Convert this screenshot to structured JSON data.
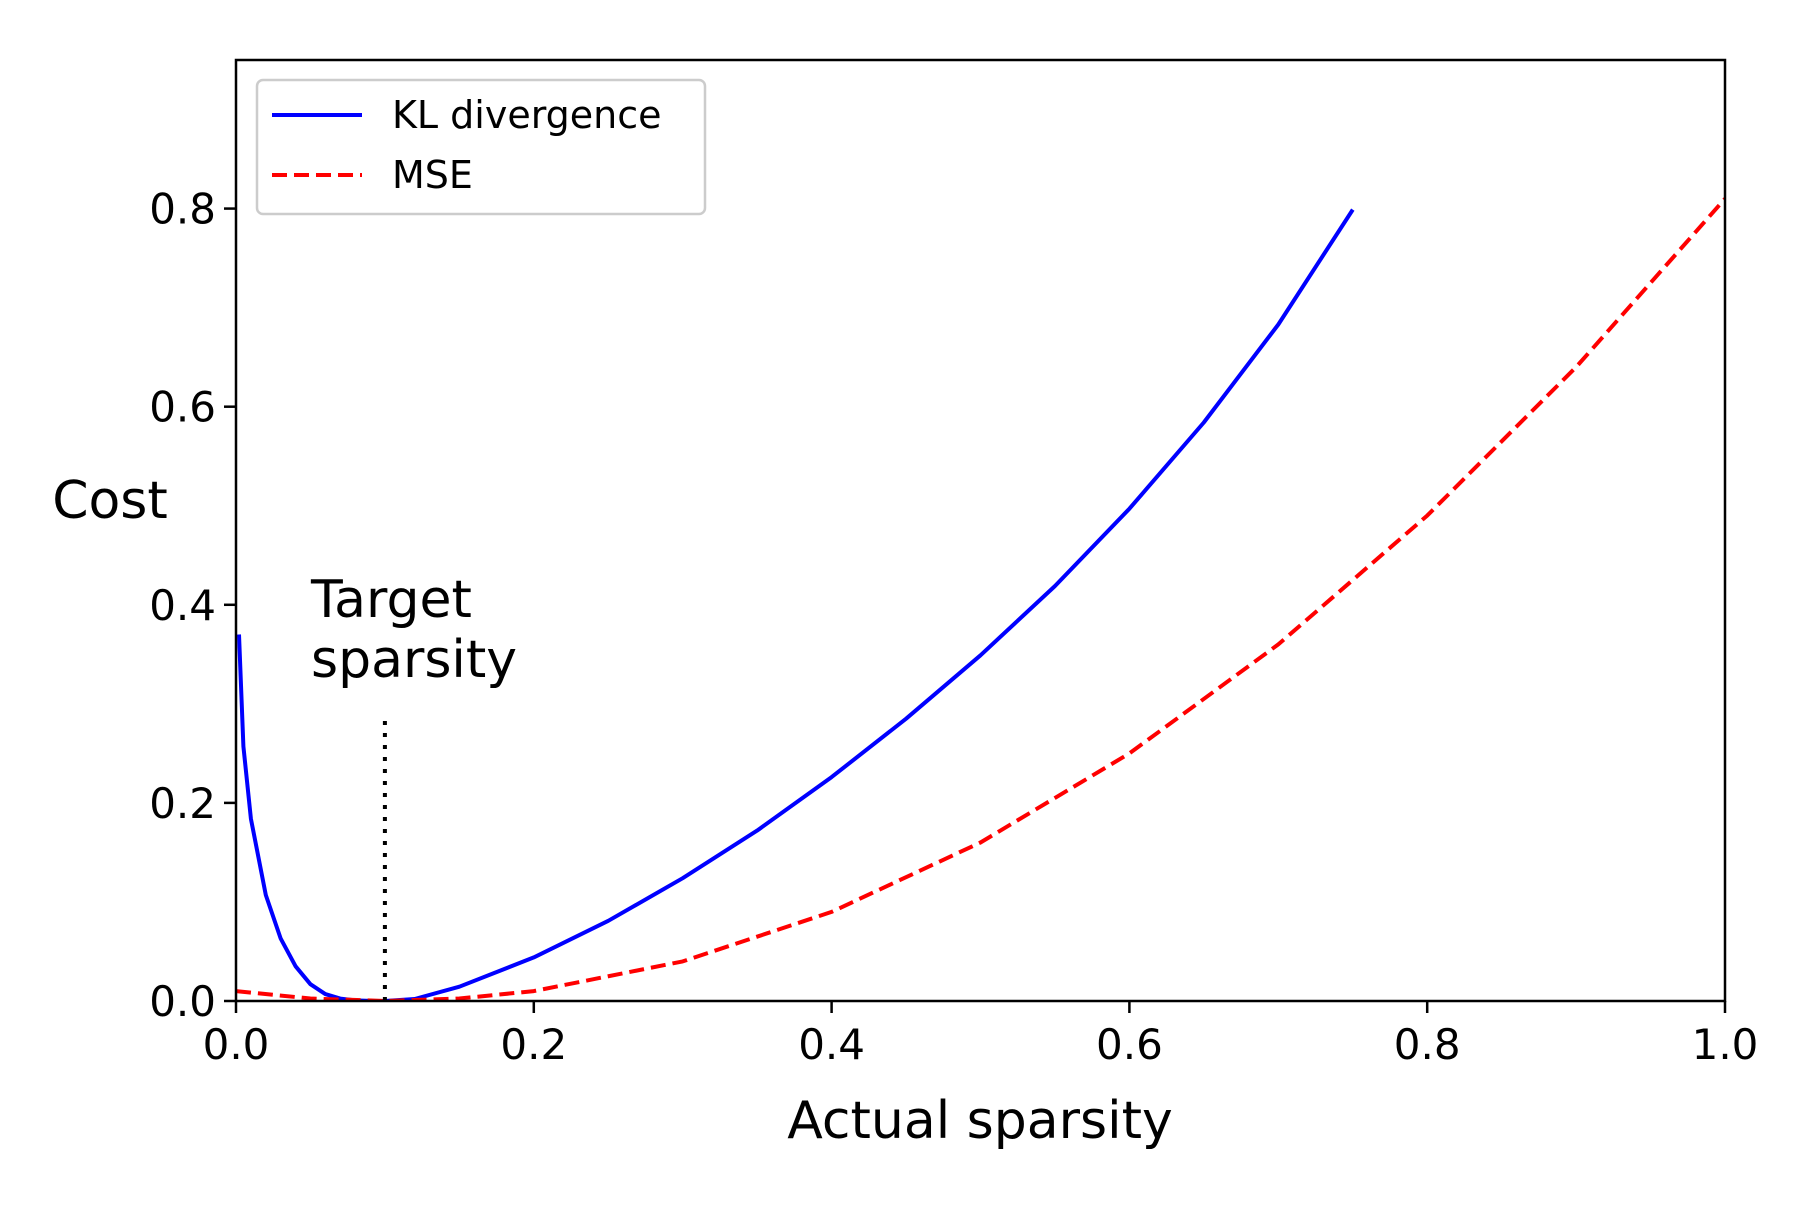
{
  "chart_data": {
    "type": "line",
    "xlabel": "Actual sparsity",
    "ylabel": "Cost",
    "xlim": [
      0.0,
      1.0
    ],
    "ylim": [
      0.0,
      0.95
    ],
    "x_ticks": [
      "0.0",
      "0.2",
      "0.4",
      "0.6",
      "0.8",
      "1.0"
    ],
    "y_ticks": [
      "0.0",
      "0.2",
      "0.4",
      "0.6",
      "0.8"
    ],
    "x_tick_values": [
      0.0,
      0.2,
      0.4,
      0.6,
      0.8,
      1.0
    ],
    "y_tick_values": [
      0.0,
      0.2,
      0.4,
      0.6,
      0.8
    ],
    "grid": false,
    "legend_position": "top-left",
    "series": [
      {
        "name": "KL divergence",
        "color": "#0000ff",
        "style": "solid",
        "x": [
          0.002,
          0.005,
          0.01,
          0.02,
          0.03,
          0.04,
          0.05,
          0.06,
          0.07,
          0.08,
          0.09,
          0.1,
          0.12,
          0.15,
          0.2,
          0.25,
          0.3,
          0.35,
          0.4,
          0.45,
          0.5,
          0.55,
          0.6,
          0.65,
          0.7,
          0.75
        ],
        "y": [
          0.37,
          0.257,
          0.184,
          0.107,
          0.063,
          0.035,
          0.017,
          0.007,
          0.0024,
          0.0006,
          0.0001,
          0.0,
          0.002,
          0.0144,
          0.044,
          0.081,
          0.124,
          0.172,
          0.226,
          0.285,
          0.349,
          0.419,
          0.497,
          0.584,
          0.683,
          0.799
        ]
      },
      {
        "name": "MSE",
        "color": "#ff0000",
        "style": "dashed",
        "x": [
          0.0,
          0.05,
          0.1,
          0.15,
          0.2,
          0.3,
          0.4,
          0.5,
          0.6,
          0.7,
          0.8,
          0.9,
          1.0
        ],
        "y": [
          0.01,
          0.0025,
          0.0,
          0.0025,
          0.01,
          0.04,
          0.09,
          0.16,
          0.25,
          0.36,
          0.49,
          0.64,
          0.81
        ]
      }
    ],
    "annotation": {
      "lines": [
        "Target",
        "sparsity"
      ],
      "x": 0.1,
      "y_range": [
        0.0,
        0.29
      ]
    }
  }
}
